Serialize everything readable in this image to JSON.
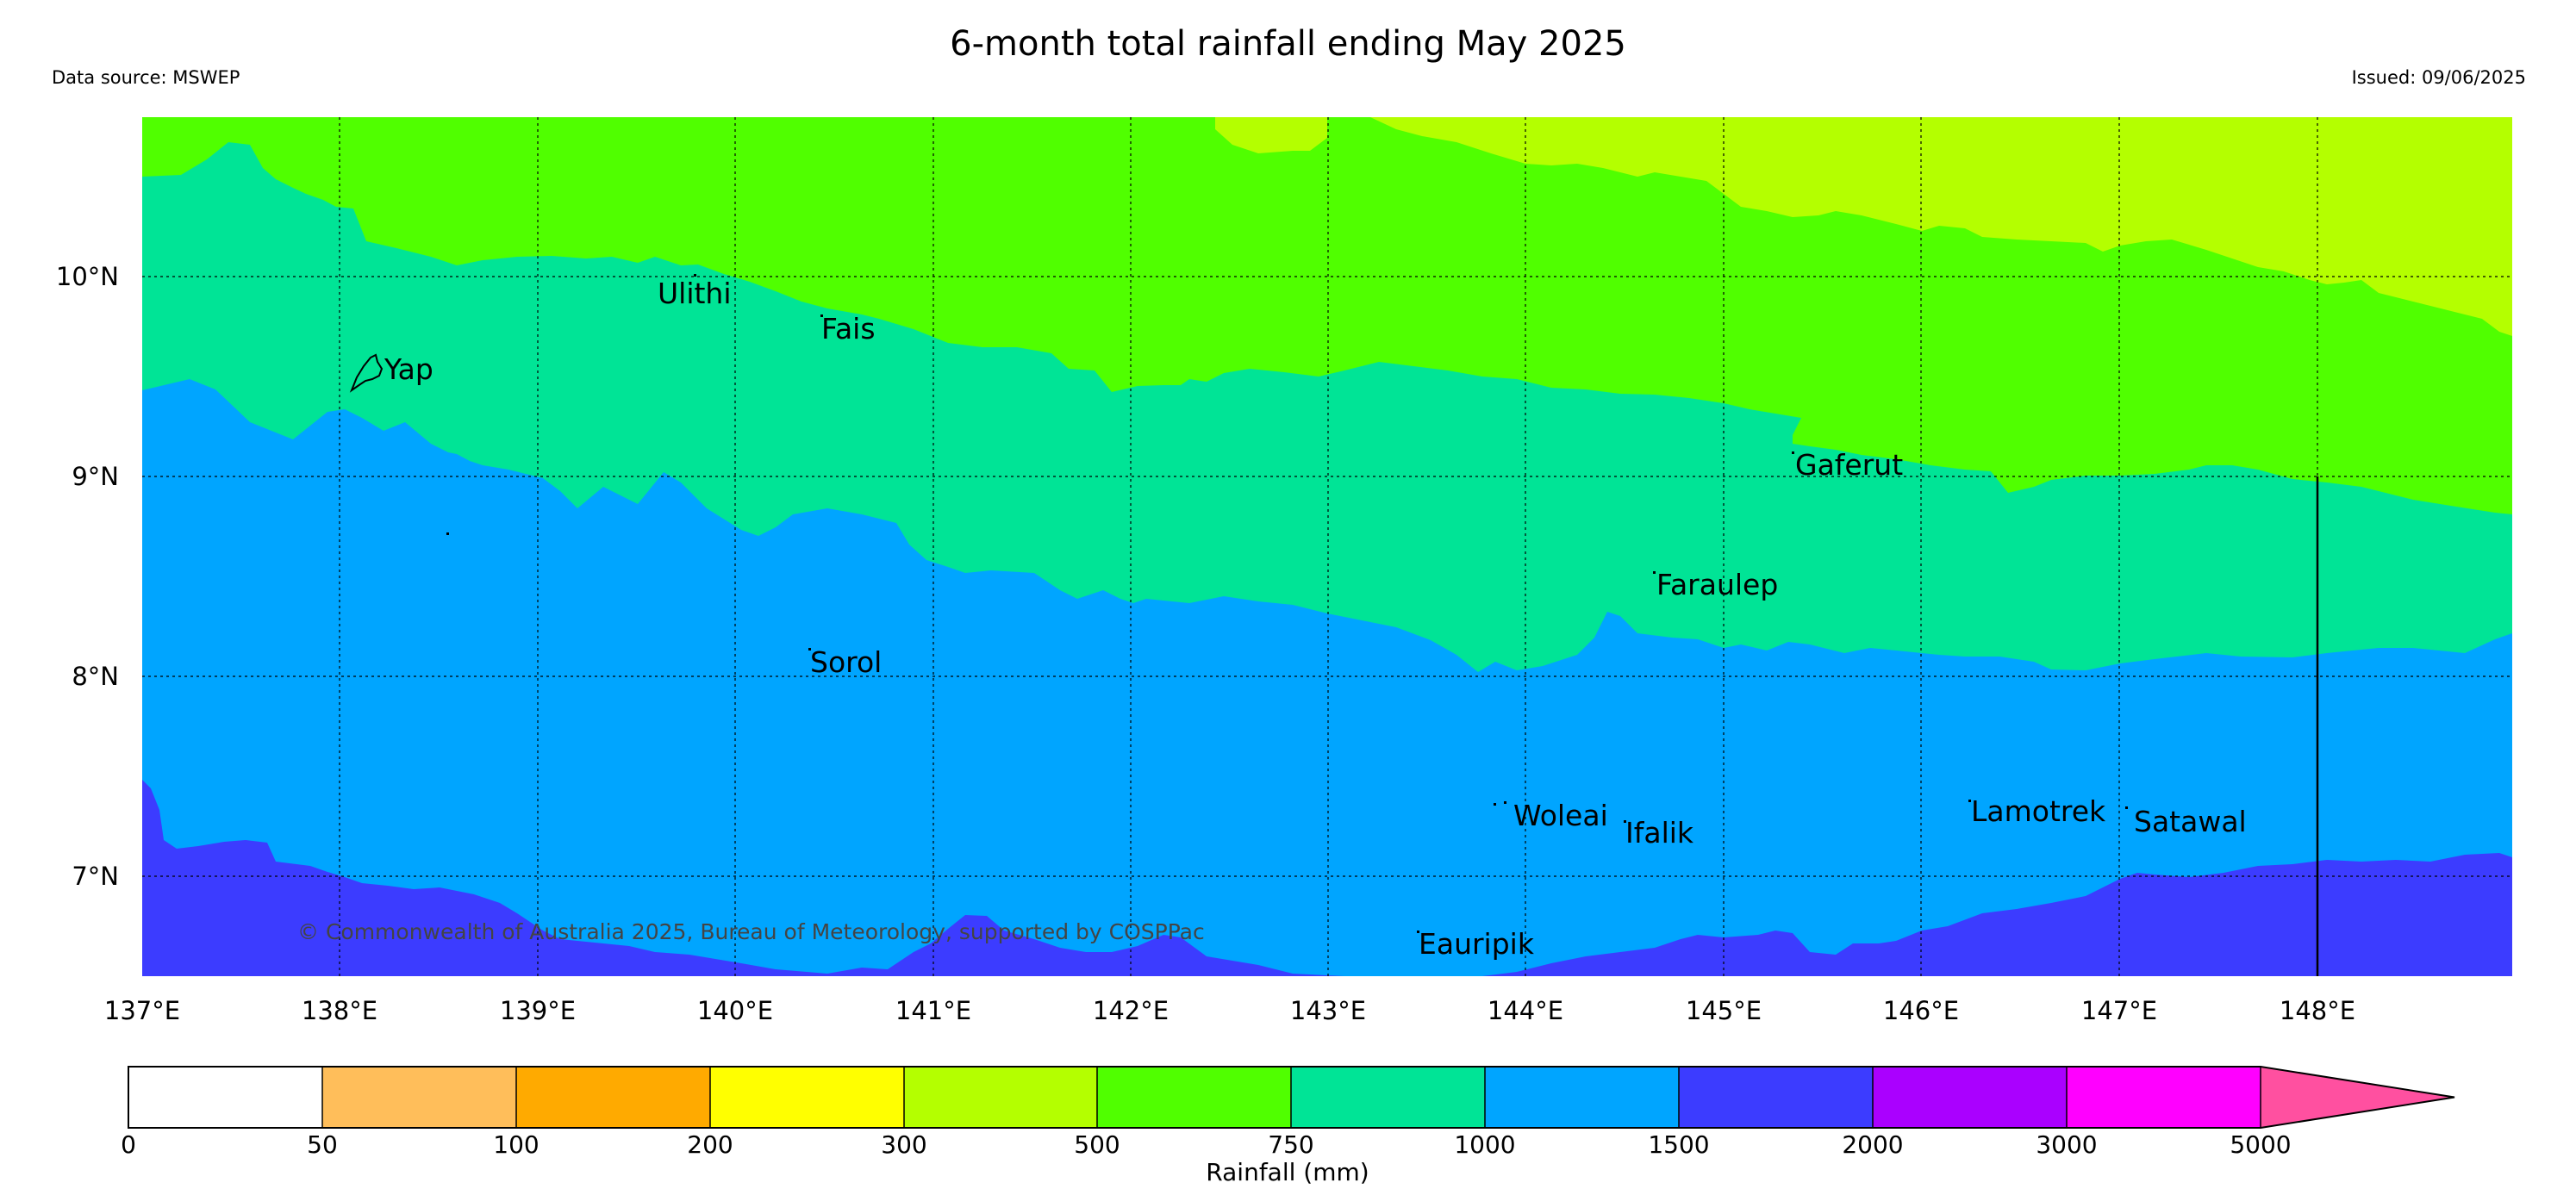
{
  "header": {
    "title": "6-month total rainfall ending May 2025",
    "data_source": "Data source: MSWEP",
    "issued": "Issued: 09/06/2025"
  },
  "map": {
    "lon_ticks": [
      "137°E",
      "138°E",
      "139°E",
      "140°E",
      "141°E",
      "142°E",
      "143°E",
      "144°E",
      "145°E",
      "146°E",
      "147°E",
      "148°E"
    ],
    "lat_ticks": [
      "10°N",
      "9°N",
      "8°N",
      "7°N"
    ],
    "lon_range": [
      137,
      149
    ],
    "lat_range": [
      6.5,
      10.8
    ],
    "places": [
      "Yap",
      "Ulithi",
      "Fais",
      "Gaferut",
      "Faraulep",
      "Sorol",
      "Woleai",
      "Ifalik",
      "Lamotrek",
      "Satawal",
      "Eauripik"
    ],
    "copyright": "© Commonwealth of Australia 2025, Bureau of Meteorology, supported by COSPPac",
    "band_colors": {
      "300-500": "#b4ff00",
      "500-750": "#50ff00",
      "750-1000": "#00e496",
      "1000-1500": "#00a5ff",
      "1500-2000": "#3c3cff"
    }
  },
  "colorbar": {
    "label": "Rainfall (mm)",
    "ticks": [
      "0",
      "50",
      "100",
      "200",
      "300",
      "500",
      "750",
      "1000",
      "1500",
      "2000",
      "3000",
      "5000"
    ],
    "colors": [
      "#ffffff",
      "#ffbe5a",
      "#ffaa00",
      "#ffff00",
      "#b4ff00",
      "#50ff00",
      "#00e496",
      "#00a5ff",
      "#3c3cff",
      "#aa00ff",
      "#ff00ff",
      "#ff50a0"
    ]
  }
}
